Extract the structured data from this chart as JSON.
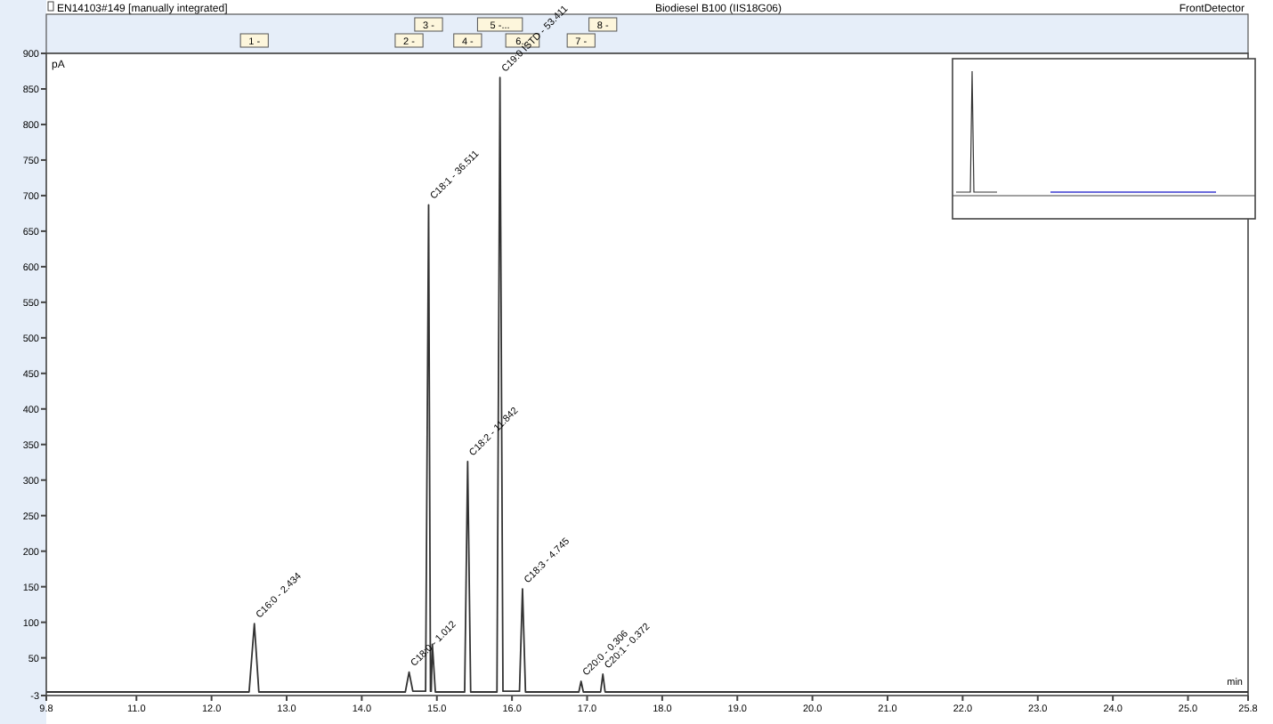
{
  "chart_data": {
    "type": "line",
    "title": "EN14103#149 [manually integrated]",
    "subtitle": "Biodiesel B100 (IIS18G06)",
    "xlabel": "min",
    "ylabel": "pA",
    "x": [
      9.8,
      12.5,
      12.57,
      12.63,
      14.58,
      14.63,
      14.68,
      14.85,
      14.89,
      14.915,
      14.925,
      14.94,
      14.98,
      15.37,
      15.41,
      15.45,
      15.8,
      15.84,
      15.88,
      16.1,
      16.14,
      16.18,
      16.89,
      16.92,
      16.95,
      17.18,
      17.21,
      17.24,
      25.8
    ],
    "series": [
      {
        "color": "#333333",
        "values": [
          2,
          2,
          98,
          2,
          2,
          30,
          3,
          3,
          687,
          3,
          3,
          69,
          2,
          2,
          326,
          2,
          2,
          866,
          3,
          3,
          147,
          2,
          2,
          17,
          2,
          2,
          27,
          2,
          2
        ]
      }
    ],
    "xlim": [
      9.8,
      25.8
    ],
    "xticks": [
      9.8,
      {
        "value": 11,
        "label": "11.0"
      },
      {
        "value": 12,
        "label": "12.0"
      },
      {
        "value": 13,
        "label": "13.0"
      },
      {
        "value": 14,
        "label": "14.0"
      },
      {
        "value": 15,
        "label": "15.0"
      },
      {
        "value": 16,
        "label": "16.0"
      },
      {
        "value": 17,
        "label": "17.0"
      },
      {
        "value": 18,
        "label": "18.0"
      },
      {
        "value": 19,
        "label": "19.0"
      },
      {
        "value": 20,
        "label": "20.0"
      },
      {
        "value": 21,
        "label": "21.0"
      },
      {
        "value": 22,
        "label": "22.0"
      },
      {
        "value": 23,
        "label": "23.0"
      },
      {
        "value": 24,
        "label": "24.0"
      },
      {
        "value": 25,
        "label": "25.0"
      },
      25.8
    ],
    "ylim": [
      -3,
      900
    ],
    "yticks": [
      -3,
      50,
      100,
      150,
      200,
      250,
      300,
      350,
      400,
      450,
      500,
      550,
      600,
      650,
      700,
      750,
      800,
      850,
      900
    ],
    "grid": false,
    "marker": "none",
    "line_style": "solid",
    "annotations": [
      {
        "text": "C16:0 - 2.434",
        "x": 12.57,
        "y": 98
      },
      {
        "text": "C18:0 - 1.012",
        "x": 14.63,
        "y": 30
      },
      {
        "text": "C18:1 - 36.511",
        "x": 14.89,
        "y": 687
      },
      {
        "text": "C18:2 - 11.842",
        "x": 15.41,
        "y": 326
      },
      {
        "text": "C19:0 ISTD - 53.411",
        "x": 15.84,
        "y": 866
      },
      {
        "text": "C18:3 - 4.745",
        "x": 16.14,
        "y": 147
      },
      {
        "text": "C20:0 - 0.306",
        "x": 16.92,
        "y": 17
      },
      {
        "text": "C20:1 - 0.372",
        "x": 17.21,
        "y": 27
      },
      "1 -",
      "2 -",
      "3 -",
      "4 -",
      "5 -...",
      "6...",
      "7 -",
      "8 -",
      "FrontDetector"
    ]
  }
}
